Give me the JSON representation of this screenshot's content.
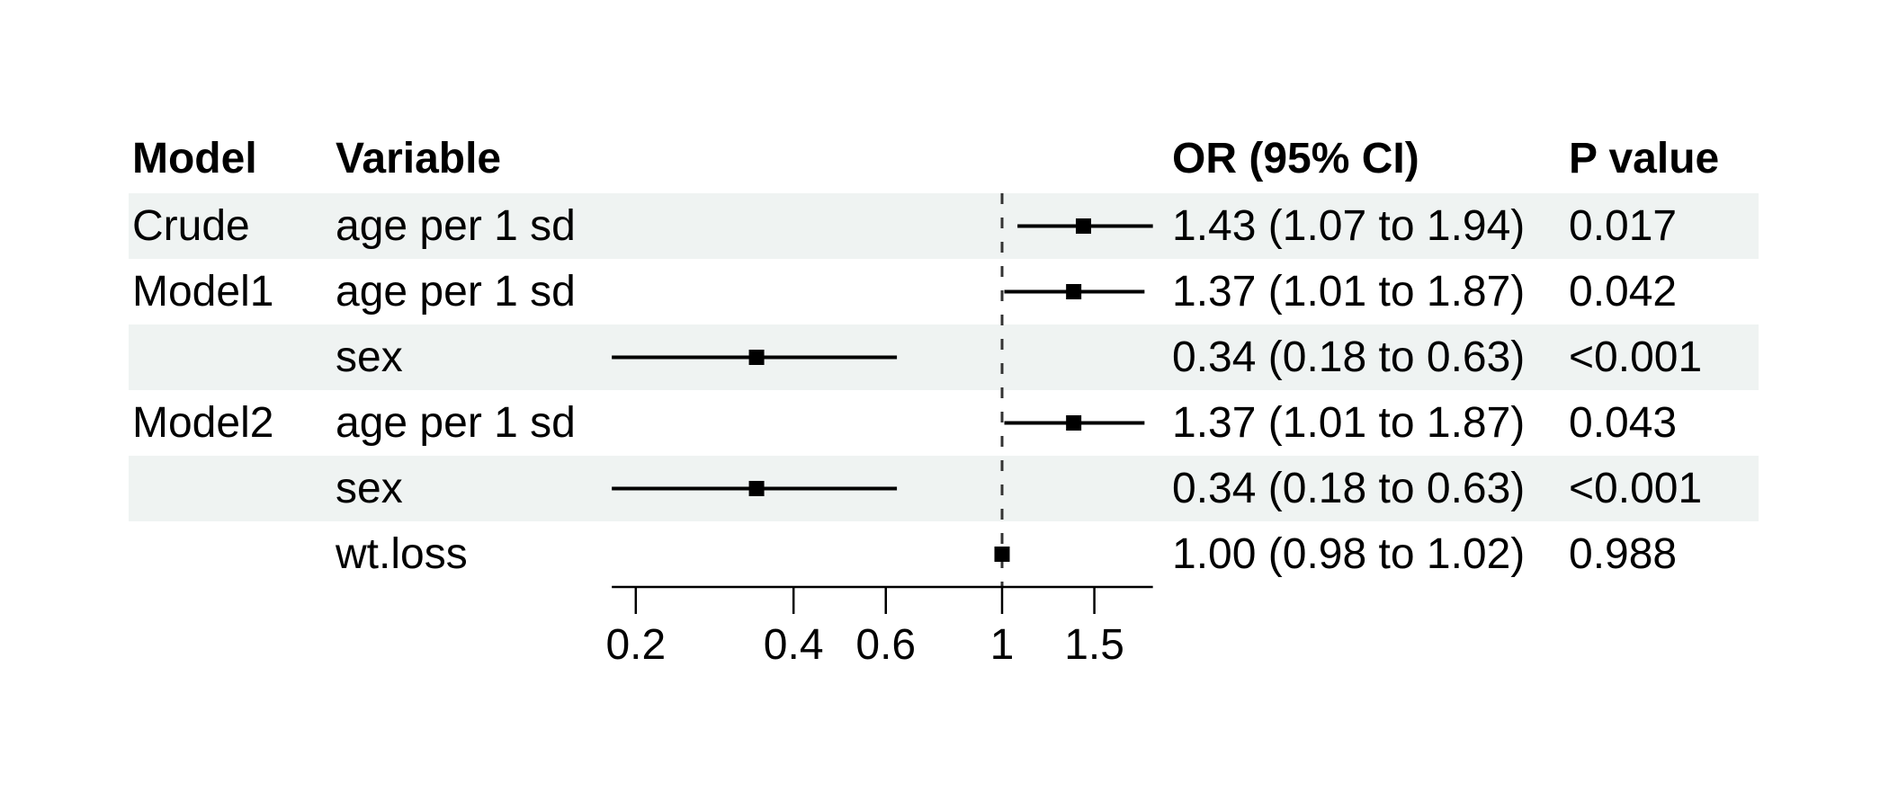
{
  "header": {
    "model": "Model",
    "variable": "Variable",
    "or": "OR (95% CI)",
    "p": "P value"
  },
  "table": {
    "rows": [
      {
        "model": "Crude",
        "variable": "age per 1 sd",
        "or_ci": "1.43 (1.07 to 1.94)",
        "p": "0.017"
      },
      {
        "model": "Model1",
        "variable": "age per 1 sd",
        "or_ci": "1.37 (1.01 to 1.87)",
        "p": "0.042"
      },
      {
        "model": "",
        "variable": "sex",
        "or_ci": "0.34 (0.18 to 0.63)",
        "p": "<0.001"
      },
      {
        "model": "Model2",
        "variable": "age per 1 sd",
        "or_ci": "1.37 (1.01 to 1.87)",
        "p": "0.043"
      },
      {
        "model": "",
        "variable": "sex",
        "or_ci": "0.34 (0.18 to 0.63)",
        "p": "<0.001"
      },
      {
        "model": "",
        "variable": "wt.loss",
        "or_ci": "1.00 (0.98 to 1.02)",
        "p": "0.988"
      }
    ]
  },
  "chart_data": {
    "type": "forest",
    "x_scale": "log",
    "x_ticks": [
      0.2,
      0.4,
      0.6,
      1,
      1.5
    ],
    "x_tick_labels": [
      "0.2",
      "0.4",
      "0.6",
      "1",
      "1.5"
    ],
    "x_axis_range": [
      0.18,
      1.94
    ],
    "reference_line": 1,
    "grid": false,
    "rows": [
      {
        "label": "Crude age per 1 sd",
        "est": 1.43,
        "low": 1.07,
        "high": 1.94
      },
      {
        "label": "Model1 age per 1 sd",
        "est": 1.37,
        "low": 1.01,
        "high": 1.87
      },
      {
        "label": "Model1 sex",
        "est": 0.34,
        "low": 0.18,
        "high": 0.63
      },
      {
        "label": "Model2 age per 1 sd",
        "est": 1.37,
        "low": 1.01,
        "high": 1.87
      },
      {
        "label": "Model2 sex",
        "est": 0.34,
        "low": 0.18,
        "high": 0.63
      },
      {
        "label": "Model2 wt.loss",
        "est": 1.0,
        "low": 0.98,
        "high": 1.02
      }
    ]
  },
  "colors": {
    "text": "#000000",
    "stripe_bg": "#eff3f2",
    "row_bg": "#ffffff",
    "ci_line": "#000000",
    "marker": "#000000",
    "axis": "#000000",
    "ref_line": "#333333"
  }
}
